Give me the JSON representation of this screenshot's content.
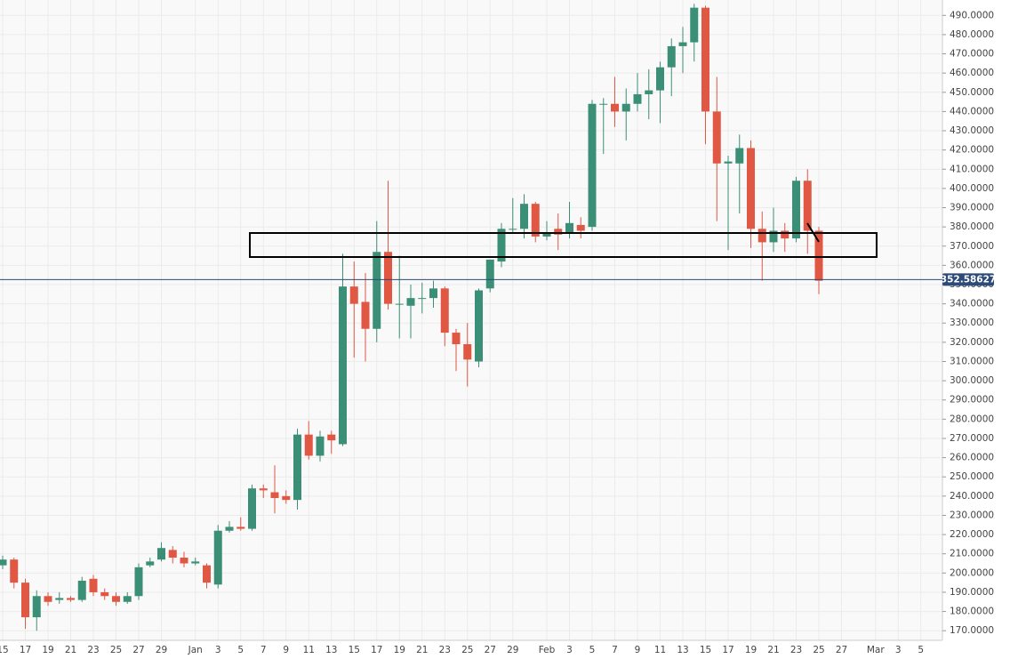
{
  "chart_data": {
    "type": "candlestick",
    "categories": [
      "15",
      null,
      "17",
      null,
      "19",
      null,
      "21",
      null,
      "23",
      null,
      "25",
      null,
      "27",
      null,
      "29",
      null,
      null,
      "Jan",
      null,
      "3",
      null,
      "5",
      null,
      "7",
      null,
      "9",
      null,
      "11",
      null,
      "13",
      null,
      "15",
      null,
      "17",
      null,
      "19",
      null,
      "21",
      null,
      "23",
      null,
      "25",
      null,
      "27",
      null,
      "29",
      null,
      null,
      "Feb",
      null,
      "3",
      null,
      "5",
      null,
      "7",
      null,
      "9",
      null,
      "11",
      null,
      "13",
      null,
      "15",
      null,
      "17",
      null,
      "19",
      null,
      "21",
      null,
      "23",
      null,
      "25",
      null,
      "27",
      null,
      null,
      "Mar",
      null,
      "3",
      null,
      "5"
    ],
    "open": [
      204,
      207,
      195,
      177,
      188,
      186,
      187,
      186,
      197,
      190,
      188,
      185,
      188,
      204,
      207,
      212,
      208,
      205,
      204,
      194,
      222,
      224,
      223,
      244,
      242,
      240,
      238,
      272,
      261,
      272,
      267,
      349,
      341,
      327,
      367,
      340,
      339,
      343,
      343,
      348,
      325,
      319,
      310,
      348,
      362,
      379,
      379,
      392,
      375,
      379,
      377,
      381,
      380,
      444,
      444,
      440,
      444,
      449,
      451,
      463,
      474,
      476,
      494,
      440,
      413,
      413,
      421,
      379,
      372,
      378,
      374,
      404,
      378,
      null,
      null,
      null,
      null,
      null,
      null,
      null,
      null,
      null
    ],
    "high": [
      209,
      208,
      197,
      191,
      190,
      190,
      188,
      198,
      199,
      192,
      190,
      190,
      205,
      208,
      216,
      214,
      211,
      208,
      205,
      225,
      227,
      229,
      246,
      246,
      256,
      243,
      275,
      279,
      274,
      274,
      366,
      362,
      356,
      383,
      404,
      365,
      350,
      351,
      352,
      349,
      327,
      330,
      348,
      363,
      382,
      395,
      397,
      393,
      383,
      387,
      393,
      385,
      446,
      447,
      458,
      452,
      460,
      462,
      466,
      478,
      484,
      496,
      495,
      458,
      417,
      428,
      425,
      388,
      390,
      382,
      406,
      410,
      380,
      null,
      null,
      null,
      null,
      null,
      null,
      null,
      null,
      null
    ],
    "low": [
      202,
      192,
      171,
      170,
      183,
      184,
      185,
      185,
      188,
      186,
      183,
      184,
      186,
      203,
      206,
      205,
      203,
      204,
      192,
      192,
      221,
      222,
      222,
      239,
      231,
      236,
      233,
      259,
      258,
      262,
      266,
      312,
      310,
      320,
      337,
      322,
      322,
      335,
      338,
      318,
      305,
      297,
      307,
      346,
      359,
      377,
      374,
      372,
      373,
      368,
      374,
      374,
      378,
      418,
      432,
      425,
      440,
      436,
      434,
      448,
      460,
      466,
      423,
      383,
      368,
      387,
      369,
      352,
      367,
      367,
      372,
      366,
      345,
      null,
      null,
      null,
      null,
      null,
      null,
      null,
      null,
      null
    ],
    "close": [
      207,
      195,
      177,
      188,
      185,
      187,
      186,
      196,
      190,
      188,
      185,
      188,
      203,
      206,
      213,
      208,
      205,
      206,
      195,
      222,
      224,
      223,
      244,
      243,
      239,
      238,
      272,
      261,
      271,
      269,
      349,
      340,
      327,
      367,
      340,
      340,
      343,
      343,
      348,
      325,
      319,
      311,
      347,
      363,
      379,
      379,
      392,
      375,
      377,
      376,
      382,
      378,
      444,
      444,
      440,
      444,
      449,
      451,
      463,
      474,
      476,
      494,
      440,
      413,
      414,
      421,
      379,
      372,
      378,
      374,
      404,
      378,
      352,
      null,
      null,
      null,
      null,
      null,
      null,
      null,
      null,
      null
    ],
    "up_color": "#3a8f76",
    "down_color": "#e05744",
    "last_price": 352.58627,
    "ylim": [
      165,
      498
    ],
    "yticks": [
      {
        "value": 170,
        "label": "170.0000"
      },
      {
        "value": 180,
        "label": "180.0000"
      },
      {
        "value": 190,
        "label": "190.0000"
      },
      {
        "value": 200,
        "label": "200.0000"
      },
      {
        "value": 210,
        "label": "210.0000"
      },
      {
        "value": 220,
        "label": "220.0000"
      },
      {
        "value": 230,
        "label": "230.0000"
      },
      {
        "value": 240,
        "label": "240.0000"
      },
      {
        "value": 250,
        "label": "250.0000"
      },
      {
        "value": 260,
        "label": "260.0000"
      },
      {
        "value": 270,
        "label": "270.0000"
      },
      {
        "value": 280,
        "label": "280.0000"
      },
      {
        "value": 290,
        "label": "290.0000"
      },
      {
        "value": 300,
        "label": "300.0000"
      },
      {
        "value": 310,
        "label": "310.0000"
      },
      {
        "value": 320,
        "label": "320.0000"
      },
      {
        "value": 330,
        "label": "330.0000"
      },
      {
        "value": 340,
        "label": "340.0000"
      },
      {
        "value": 350,
        "label": "350.0000"
      },
      {
        "value": 360,
        "label": "360.0000"
      },
      {
        "value": 370,
        "label": "370.0000"
      },
      {
        "value": 380,
        "label": "380.0000"
      },
      {
        "value": 390,
        "label": "390.0000"
      },
      {
        "value": 400,
        "label": "400.0000"
      },
      {
        "value": 410,
        "label": "410.0000"
      },
      {
        "value": 420,
        "label": "420.0000"
      },
      {
        "value": 430,
        "label": "430.0000"
      },
      {
        "value": 440,
        "label": "440.0000"
      },
      {
        "value": 450,
        "label": "450.0000"
      },
      {
        "value": 460,
        "label": "460.0000"
      },
      {
        "value": 470,
        "label": "470.0000"
      },
      {
        "value": 480,
        "label": "480.0000"
      },
      {
        "value": 490,
        "label": "490.0000"
      }
    ],
    "grid": true
  }
}
